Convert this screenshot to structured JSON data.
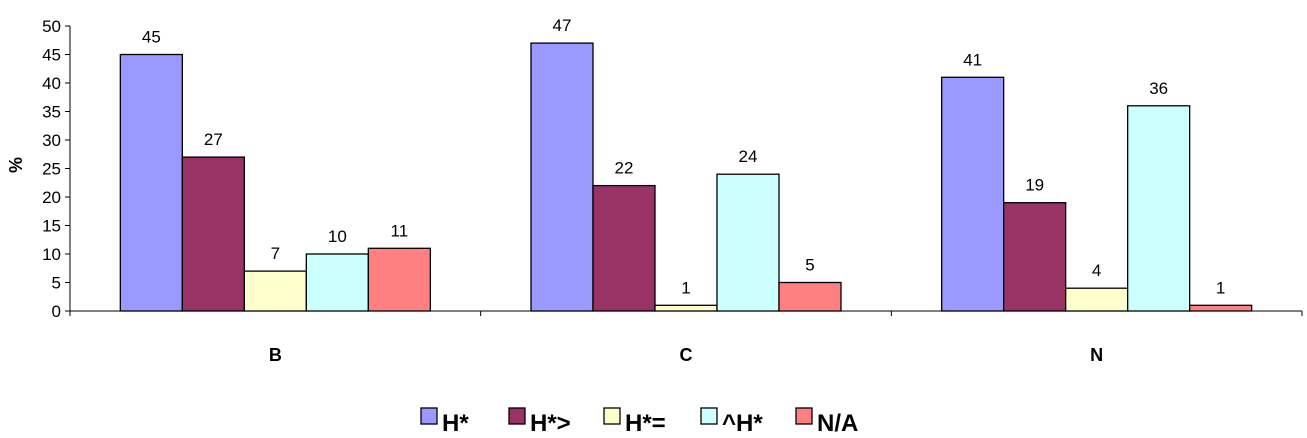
{
  "chart_data": {
    "type": "bar",
    "ylabel": "%",
    "xlabel": "",
    "ylim": [
      0,
      50
    ],
    "ytick_step": 5,
    "categories": [
      "B",
      "C",
      "N"
    ],
    "series": [
      {
        "name": "H*",
        "color": "#9999ff",
        "values": [
          45,
          47,
          41
        ],
        "labels": [
          "45",
          "47",
          "41"
        ]
      },
      {
        "name": "H*>",
        "color": "#993366",
        "values": [
          27,
          22,
          19
        ],
        "labels": [
          "27",
          "22",
          "19"
        ]
      },
      {
        "name": "H*=",
        "color": "#ffffcc",
        "values": [
          7,
          1,
          4
        ],
        "labels": [
          "7",
          "1",
          "4"
        ]
      },
      {
        "name": "^H*",
        "color": "#ccffff",
        "values": [
          10,
          24,
          36
        ],
        "labels": [
          "10",
          "24",
          "36"
        ]
      },
      {
        "name": "N/A",
        "color": "#ff8080",
        "values": [
          11,
          5,
          1
        ],
        "labels": [
          "11",
          "5",
          "1"
        ]
      }
    ],
    "legend_position": "bottom",
    "grid": false
  }
}
